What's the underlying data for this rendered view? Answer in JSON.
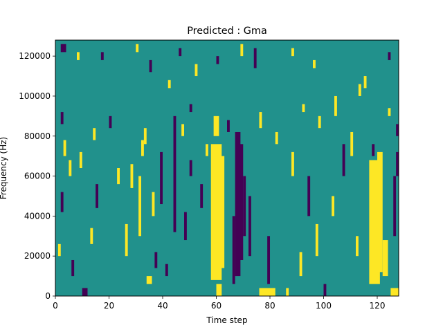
{
  "chart_data": {
    "type": "heatmap",
    "title": "Predicted : Gma",
    "xlabel": "Time step",
    "ylabel": "Frequency (Hz)",
    "xlim": [
      0,
      128
    ],
    "ylim": [
      0,
      128000
    ],
    "x_ticks": [
      0,
      20,
      40,
      60,
      80,
      100,
      120
    ],
    "x_tick_labels": [
      "0",
      "20",
      "40",
      "60",
      "80",
      "100",
      "120"
    ],
    "y_ticks": [
      0,
      20000,
      40000,
      60000,
      80000,
      100000,
      120000
    ],
    "y_tick_labels": [
      "0",
      "20000",
      "40000",
      "60000",
      "80000",
      "100000",
      "120000"
    ],
    "grid": false,
    "legend": "none",
    "n_time_steps": 128,
    "n_freq_bins": 64,
    "colormap": {
      "low": "#440154",
      "mid": "#21918c",
      "high": "#fde725"
    },
    "background_value": 0,
    "cells_description": "Each entry is [time_start, time_end, freq_start, freq_end, value] in data units; value -1 = low (dark purple), 1 = high (yellow). Every other cell has value 0 (teal).",
    "cells": [
      [
        58,
        62,
        8000,
        76000,
        1
      ],
      [
        61,
        63,
        14000,
        70000,
        1
      ],
      [
        117,
        121,
        6000,
        68000,
        1
      ],
      [
        120,
        122,
        12000,
        72000,
        1
      ],
      [
        67,
        69,
        10000,
        82000,
        -1
      ],
      [
        68,
        70,
        18000,
        76000,
        -1
      ],
      [
        44,
        45,
        32000,
        90000,
        -1
      ],
      [
        39,
        40,
        46000,
        72000,
        -1
      ],
      [
        79,
        80,
        6000,
        30000,
        -1
      ],
      [
        10,
        12,
        0,
        4000,
        -1
      ],
      [
        76,
        82,
        0,
        4000,
        1
      ],
      [
        2,
        4,
        122000,
        126000,
        -1
      ],
      [
        125,
        128,
        0,
        4000,
        1
      ],
      [
        122,
        124,
        10000,
        28000,
        1
      ],
      [
        59,
        61,
        80000,
        90000,
        1
      ],
      [
        60,
        62,
        0,
        6000,
        1
      ],
      [
        66,
        67,
        6000,
        40000,
        -1
      ],
      [
        70,
        71,
        30000,
        60000,
        -1
      ],
      [
        72,
        73,
        20000,
        50000,
        -1
      ],
      [
        31,
        32,
        30000,
        60000,
        1
      ],
      [
        32,
        33,
        70000,
        78000,
        1
      ],
      [
        33,
        34,
        76000,
        84000,
        1
      ],
      [
        26,
        27,
        20000,
        36000,
        1
      ],
      [
        28,
        29,
        54000,
        66000,
        1
      ],
      [
        23,
        24,
        56000,
        64000,
        1
      ],
      [
        34,
        36,
        6000,
        10000,
        1
      ],
      [
        36,
        37,
        40000,
        52000,
        1
      ],
      [
        41,
        42,
        10000,
        16000,
        -1
      ],
      [
        37,
        38,
        14000,
        22000,
        -1
      ],
      [
        48,
        49,
        28000,
        42000,
        -1
      ],
      [
        50,
        51,
        60000,
        68000,
        -1
      ],
      [
        54,
        55,
        44000,
        56000,
        -1
      ],
      [
        15,
        16,
        44000,
        56000,
        -1
      ],
      [
        13,
        14,
        26000,
        34000,
        1
      ],
      [
        9,
        10,
        64000,
        72000,
        1
      ],
      [
        3,
        4,
        70000,
        78000,
        1
      ],
      [
        2,
        3,
        42000,
        52000,
        -1
      ],
      [
        1,
        2,
        20000,
        26000,
        1
      ],
      [
        5,
        6,
        60000,
        68000,
        1
      ],
      [
        6,
        7,
        10000,
        18000,
        -1
      ],
      [
        94,
        95,
        40000,
        60000,
        -1
      ],
      [
        97,
        98,
        20000,
        36000,
        1
      ],
      [
        103,
        104,
        40000,
        50000,
        1
      ],
      [
        104,
        105,
        90000,
        100000,
        1
      ],
      [
        107,
        108,
        60000,
        76000,
        -1
      ],
      [
        110,
        111,
        70000,
        82000,
        1
      ],
      [
        112,
        113,
        20000,
        30000,
        1
      ],
      [
        88,
        89,
        60000,
        72000,
        1
      ],
      [
        91,
        92,
        10000,
        22000,
        1
      ],
      [
        86,
        87,
        0,
        4000,
        1
      ],
      [
        100,
        101,
        0,
        6000,
        -1
      ],
      [
        126,
        127,
        30000,
        60000,
        -1
      ],
      [
        127,
        128,
        60000,
        72000,
        -1
      ],
      [
        115,
        116,
        104000,
        110000,
        1
      ],
      [
        113,
        114,
        100000,
        106000,
        1
      ],
      [
        96,
        97,
        114000,
        118000,
        1
      ],
      [
        88,
        89,
        120000,
        124000,
        1
      ],
      [
        74,
        75,
        114000,
        124000,
        -1
      ],
      [
        69,
        70,
        120000,
        126000,
        1
      ],
      [
        60,
        61,
        116000,
        120000,
        -1
      ],
      [
        52,
        53,
        110000,
        116000,
        1
      ],
      [
        46,
        47,
        120000,
        124000,
        -1
      ],
      [
        42,
        43,
        104000,
        108000,
        1
      ],
      [
        35,
        36,
        112000,
        118000,
        -1
      ],
      [
        30,
        31,
        122000,
        126000,
        1
      ],
      [
        17,
        18,
        118000,
        122000,
        -1
      ],
      [
        8,
        9,
        118000,
        122000,
        1
      ],
      [
        124,
        125,
        118000,
        122000,
        -1
      ],
      [
        127,
        128,
        80000,
        86000,
        -1
      ],
      [
        124,
        125,
        90000,
        94000,
        1
      ],
      [
        118,
        119,
        70000,
        76000,
        -1
      ],
      [
        98,
        99,
        84000,
        90000,
        1
      ],
      [
        92,
        93,
        92000,
        96000,
        1
      ],
      [
        82,
        83,
        76000,
        82000,
        1
      ],
      [
        76,
        77,
        84000,
        92000,
        1
      ],
      [
        64,
        65,
        82000,
        88000,
        -1
      ],
      [
        56,
        57,
        70000,
        76000,
        1
      ],
      [
        50,
        51,
        92000,
        96000,
        -1
      ],
      [
        47,
        48,
        80000,
        86000,
        1
      ],
      [
        20,
        21,
        84000,
        90000,
        -1
      ],
      [
        14,
        15,
        78000,
        84000,
        1
      ],
      [
        2,
        3,
        86000,
        92000,
        -1
      ]
    ]
  }
}
